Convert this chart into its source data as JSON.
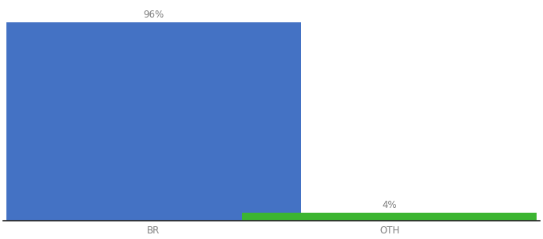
{
  "categories": [
    "BR",
    "OTH"
  ],
  "values": [
    96,
    4
  ],
  "bar_colors": [
    "#4472c4",
    "#3cb531"
  ],
  "bar_labels": [
    "96%",
    "4%"
  ],
  "background_color": "#ffffff",
  "text_color": "#7f7f7f",
  "label_fontsize": 8.5,
  "tick_fontsize": 8.5,
  "ylim": [
    0,
    105
  ],
  "bar_width": 0.55,
  "x_positions": [
    0.28,
    0.72
  ],
  "xlim": [
    0.0,
    1.0
  ]
}
